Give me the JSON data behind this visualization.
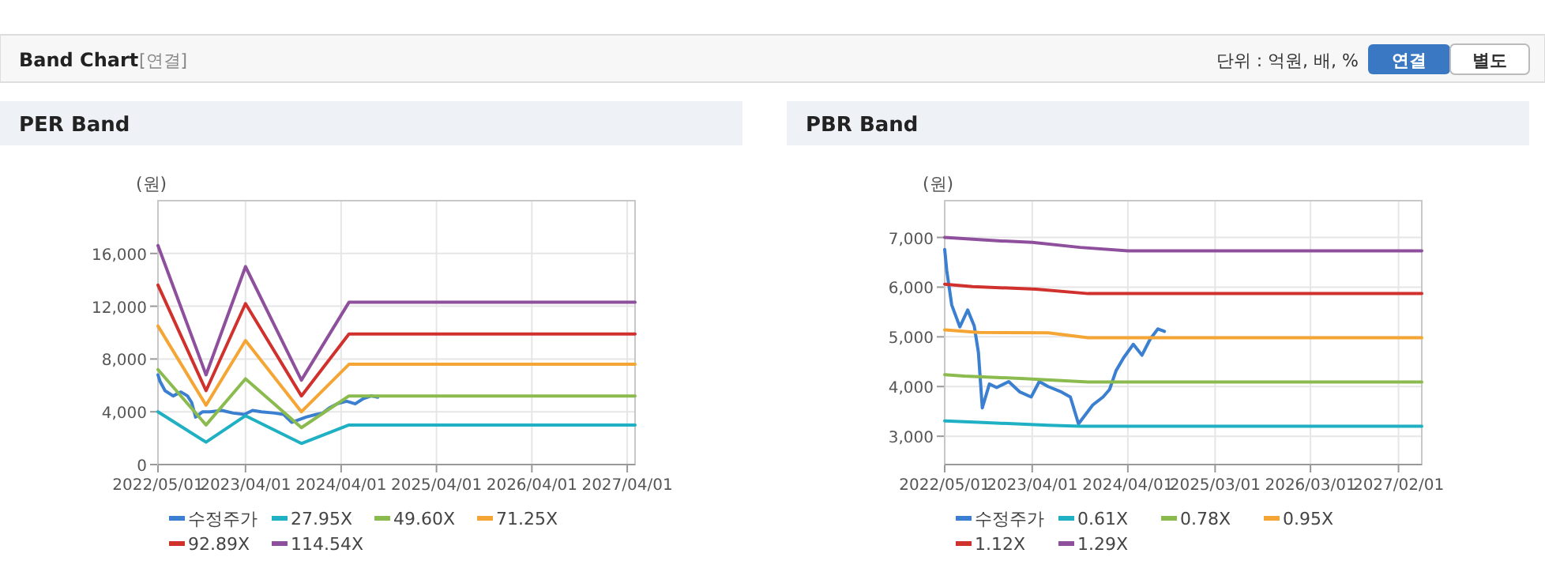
{
  "chart_data": [
    {
      "type": "line",
      "title": "PER Band",
      "ylabel": "(원)",
      "annotations": [
        "Band Chart",
        "[연결]",
        "단위 : 억원, 배, %",
        "연결",
        "별도"
      ],
      "xlim": [
        "2022-05-01",
        "2027-05-01"
      ],
      "ylim": [
        0,
        20000
      ],
      "xticks": [
        {
          "value": "2022-05-01",
          "label": "2022/05/01"
        },
        {
          "value": "2023-04-01",
          "label": "2023/04/01"
        },
        {
          "value": "2024-04-01",
          "label": "2024/04/01"
        },
        {
          "value": "2025-04-01",
          "label": "2025/04/01"
        },
        {
          "value": "2026-04-01",
          "label": "2026/04/01"
        },
        {
          "value": "2027-04-01",
          "label": "2027/04/01"
        }
      ],
      "yticks": [
        0,
        {
          "value": 4000,
          "label": "4,000"
        },
        {
          "value": 8000,
          "label": "8,000"
        },
        {
          "value": 12000,
          "label": "12,000"
        },
        {
          "value": 16000,
          "label": "16,000"
        }
      ],
      "grid": true,
      "legend": "bottom",
      "marker": "none",
      "series": [
        {
          "name": "수정주가",
          "color": "#3a7fd0",
          "x": [
            "2022-05-01",
            "2022-05-09",
            "2022-05-28",
            "2022-06-28",
            "2022-07-28",
            "2022-08-22",
            "2022-09-07",
            "2022-09-22",
            "2022-10-19",
            "2022-11-16",
            "2023-01-01",
            "2023-02-13",
            "2023-03-28",
            "2023-04-28",
            "2023-06-01",
            "2023-07-22",
            "2023-08-25",
            "2023-09-25",
            "2023-11-19",
            "2023-12-28",
            "2024-01-22",
            "2024-02-16",
            "2024-03-16",
            "2024-04-22",
            "2024-05-25",
            "2024-06-25",
            "2024-07-25",
            "2024-08-19"
          ],
          "values": [
            6800,
            6300,
            5600,
            5200,
            5500,
            5200,
            4700,
            3600,
            4000,
            4000,
            4100,
            3900,
            3800,
            4100,
            4000,
            3900,
            3800,
            3200,
            3600,
            3800,
            3900,
            4300,
            4600,
            4800,
            4600,
            5000,
            5200,
            5100
          ]
        },
        {
          "name": "27.95X",
          "color": "#1fb0c4",
          "x": [
            "2022-05-01",
            "2022-11-01",
            "2023-04-01",
            "2023-11-01",
            "2024-05-01",
            "2027-05-01"
          ],
          "values": [
            4000,
            1700,
            3700,
            1600,
            3000,
            3000
          ]
        },
        {
          "name": "49.60X",
          "color": "#8bbb4e",
          "x": [
            "2022-05-01",
            "2022-11-01",
            "2023-04-01",
            "2023-11-01",
            "2024-05-01",
            "2027-05-01"
          ],
          "values": [
            7200,
            3000,
            6500,
            2800,
            5200,
            5200
          ]
        },
        {
          "name": "71.25X",
          "color": "#f5a533",
          "x": [
            "2022-05-01",
            "2022-11-01",
            "2023-04-01",
            "2023-11-01",
            "2024-05-01",
            "2027-05-01"
          ],
          "values": [
            10500,
            4500,
            9400,
            4000,
            7600,
            7600
          ]
        },
        {
          "name": "92.89X",
          "color": "#d0312d",
          "x": [
            "2022-05-01",
            "2022-11-01",
            "2023-04-01",
            "2023-11-01",
            "2024-05-01",
            "2027-05-01"
          ],
          "values": [
            13600,
            5600,
            12200,
            5200,
            9900,
            9900
          ]
        },
        {
          "name": "114.54X",
          "color": "#8e4f9c",
          "x": [
            "2022-05-01",
            "2022-11-01",
            "2023-04-01",
            "2023-11-01",
            "2024-05-01",
            "2027-05-01"
          ],
          "values": [
            16600,
            6800,
            15000,
            6400,
            12300,
            12300
          ]
        }
      ]
    },
    {
      "type": "line",
      "title": "PBR Band",
      "ylabel": "(원)",
      "xlim": [
        "2022-05-01",
        "2027-05-01"
      ],
      "ylim": [
        2430,
        7740
      ],
      "xticks": [
        {
          "value": "2022-05-01",
          "label": "2022/05/01"
        },
        {
          "value": "2023-04-01",
          "label": "2023/04/01"
        },
        {
          "value": "2024-04-01",
          "label": "2024/04/01"
        },
        {
          "value": "2025-03-01",
          "label": "2025/03/01"
        },
        {
          "value": "2026-03-01",
          "label": "2026/03/01"
        },
        {
          "value": "2027-02-01",
          "label": "2027/02/01"
        }
      ],
      "yticks": [
        {
          "value": 3000,
          "label": "3,000"
        },
        {
          "value": 4000,
          "label": "4,000"
        },
        {
          "value": 5000,
          "label": "5,000"
        },
        {
          "value": 6000,
          "label": "6,000"
        },
        {
          "value": 7000,
          "label": "7,000"
        }
      ],
      "grid": true,
      "legend": "bottom",
      "marker": "none",
      "series": [
        {
          "name": "수정주가",
          "color": "#3a7fd0",
          "x": [
            "2022-05-01",
            "2022-05-09",
            "2022-05-28",
            "2022-06-28",
            "2022-07-28",
            "2022-08-22",
            "2022-09-07",
            "2022-09-22",
            "2022-10-19",
            "2022-11-16",
            "2023-01-01",
            "2023-02-13",
            "2023-03-28",
            "2023-04-28",
            "2023-06-01",
            "2023-07-22",
            "2023-08-25",
            "2023-09-25",
            "2023-11-19",
            "2023-12-28",
            "2024-01-22",
            "2024-02-16",
            "2024-03-16",
            "2024-04-22",
            "2024-05-25",
            "2024-06-25",
            "2024-07-25",
            "2024-08-19"
          ],
          "values": [
            6760,
            6330,
            5640,
            5200,
            5540,
            5220,
            4690,
            3570,
            4050,
            3980,
            4100,
            3890,
            3790,
            4100,
            4000,
            3890,
            3790,
            3250,
            3630,
            3790,
            3940,
            4320,
            4580,
            4850,
            4630,
            4950,
            5160,
            5110
          ]
        },
        {
          "name": "0.61X",
          "color": "#1fb0c4",
          "x": [
            "2022-05-01",
            "2022-09-07",
            "2023-06-01",
            "2023-10-01",
            "2027-05-01"
          ],
          "values": [
            3310,
            3280,
            3220,
            3200,
            3200
          ]
        },
        {
          "name": "0.78X",
          "color": "#8bbb4e",
          "x": [
            "2022-05-01",
            "2022-07-15",
            "2023-03-01",
            "2023-11-01",
            "2027-05-01"
          ],
          "values": [
            4240,
            4210,
            4160,
            4090,
            4090
          ]
        },
        {
          "name": "0.95X",
          "color": "#f5a533",
          "x": [
            "2022-05-01",
            "2022-09-07",
            "2023-06-01",
            "2023-11-01",
            "2027-05-01"
          ],
          "values": [
            5140,
            5090,
            5080,
            4980,
            4980
          ]
        },
        {
          "name": "1.12X",
          "color": "#d0312d",
          "x": [
            "2022-05-01",
            "2022-08-15",
            "2023-04-15",
            "2023-11-01",
            "2027-05-01"
          ],
          "values": [
            6060,
            6010,
            5960,
            5870,
            5870
          ]
        },
        {
          "name": "1.29X",
          "color": "#8e4f9c",
          "x": [
            "2022-05-01",
            "2022-12-01",
            "2023-04-01",
            "2023-10-01",
            "2024-04-01",
            "2027-05-01"
          ],
          "values": [
            7000,
            6930,
            6900,
            6800,
            6730,
            6730
          ]
        }
      ]
    }
  ]
}
